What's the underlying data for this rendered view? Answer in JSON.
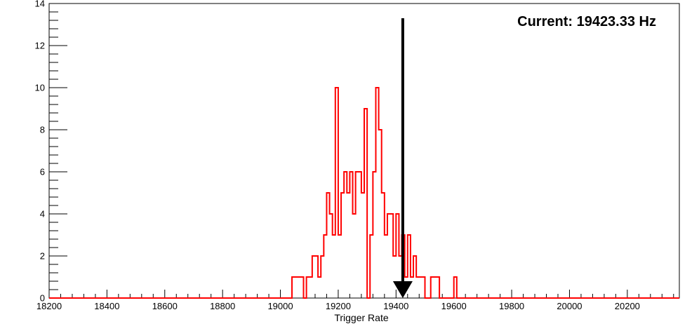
{
  "chart_data": {
    "type": "histogram",
    "title": "",
    "xlabel": "Trigger Rate",
    "ylabel": "",
    "xlim": [
      18200,
      20380
    ],
    "ylim": [
      0,
      14
    ],
    "bin_width": 10,
    "grid": false,
    "legend": "none",
    "line_color": "#ff0000",
    "x_ticks": [
      "18200",
      "18400",
      "18600",
      "18800",
      "19000",
      "19200",
      "19400",
      "19600",
      "19800",
      "20000",
      "20200"
    ],
    "y_ticks": [
      "0",
      "2",
      "4",
      "6",
      "8",
      "10",
      "12",
      "14"
    ],
    "series": [
      {
        "bin_starts": [
          19040,
          19050,
          19060,
          19070,
          19080,
          19090,
          19100,
          19110,
          19120,
          19130,
          19140,
          19150,
          19160,
          19170,
          19180,
          19190,
          19200,
          19210,
          19220,
          19230,
          19240,
          19250,
          19260,
          19270,
          19280,
          19290,
          19300,
          19310,
          19320,
          19330,
          19340,
          19350,
          19360,
          19370,
          19380,
          19390,
          19400,
          19410,
          19420,
          19430,
          19440,
          19450,
          19460,
          19470,
          19480,
          19490,
          19500,
          19510,
          19520,
          19530,
          19540,
          19550,
          19560,
          19570,
          19580,
          19590,
          19600
        ],
        "counts": [
          1,
          1,
          1,
          1,
          0,
          1,
          1,
          2,
          2,
          1,
          2,
          3,
          5,
          4,
          3,
          10,
          3,
          5,
          6,
          5,
          6,
          4,
          6,
          6,
          5,
          9,
          0,
          3,
          6,
          10,
          8,
          5,
          3,
          4,
          4,
          2,
          4,
          2,
          3,
          1,
          3,
          1,
          2,
          1,
          1,
          1,
          0,
          0,
          1,
          1,
          1,
          0,
          0,
          0,
          0,
          0,
          1
        ]
      }
    ],
    "annotations": [
      {
        "type": "arrow",
        "x": 19423.33,
        "y_from": 13.3,
        "y_to": 0,
        "color": "#000000",
        "label": "Current: 19423.33 Hz"
      }
    ]
  }
}
